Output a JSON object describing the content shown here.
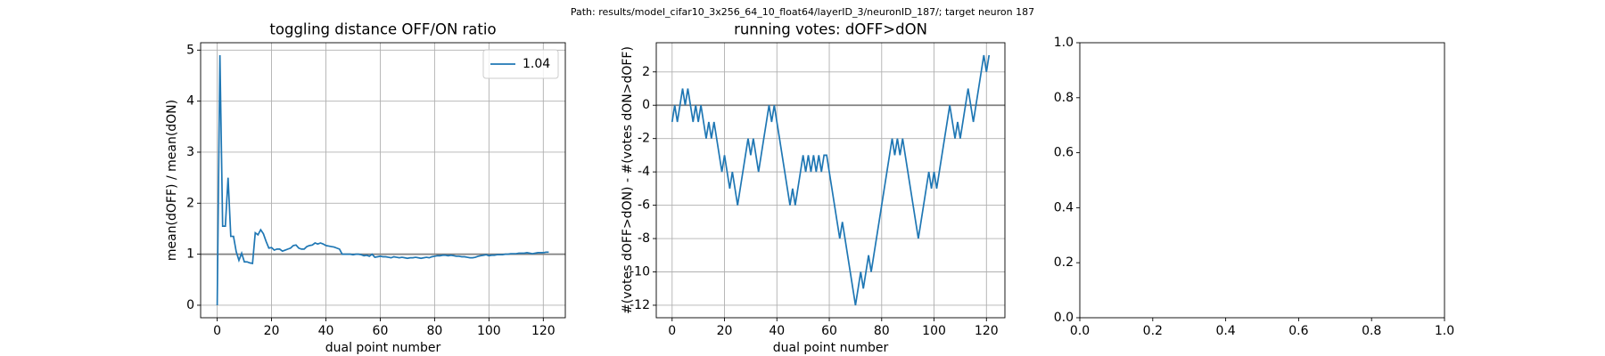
{
  "suptitle": "Path: results/model_cifar10_3x256_64_10_float64/layerID_3/neuronID_187/; target neuron 187",
  "chart_data": [
    {
      "type": "line",
      "title": "toggling distance OFF/ON ratio",
      "xlabel": "dual point number",
      "ylabel": "mean(dOFF) / mean(dON)",
      "x": [
        0,
        1,
        2,
        3,
        4,
        5,
        6,
        7,
        8,
        9,
        10,
        11,
        12,
        13,
        14,
        15,
        16,
        17,
        18,
        19,
        20,
        21,
        22,
        23,
        24,
        25,
        26,
        27,
        28,
        29,
        30,
        31,
        32,
        33,
        34,
        35,
        36,
        37,
        38,
        39,
        40,
        41,
        42,
        43,
        44,
        45,
        46,
        47,
        48,
        49,
        50,
        51,
        52,
        53,
        54,
        55,
        56,
        57,
        58,
        59,
        60,
        61,
        62,
        63,
        64,
        65,
        66,
        67,
        68,
        69,
        70,
        71,
        72,
        73,
        74,
        75,
        76,
        77,
        78,
        79,
        80,
        81,
        82,
        83,
        84,
        85,
        86,
        87,
        88,
        89,
        90,
        91,
        92,
        93,
        94,
        95,
        96,
        97,
        98,
        99,
        100,
        101,
        102,
        103,
        104,
        105,
        106,
        107,
        108,
        109,
        110,
        111,
        112,
        113,
        114,
        115,
        116,
        117,
        118,
        119,
        120,
        121,
        122
      ],
      "series": [
        {
          "name": "1.04",
          "color": "#1f77b4",
          "values": [
            0,
            4.9,
            1.55,
            1.55,
            2.5,
            1.35,
            1.35,
            1.05,
            0.88,
            1.02,
            0.85,
            0.85,
            0.83,
            0.82,
            1.42,
            1.38,
            1.48,
            1.4,
            1.25,
            1.12,
            1.13,
            1.08,
            1.1,
            1.1,
            1.06,
            1.08,
            1.1,
            1.12,
            1.17,
            1.18,
            1.12,
            1.1,
            1.1,
            1.15,
            1.17,
            1.18,
            1.22,
            1.2,
            1.22,
            1.2,
            1.17,
            1.16,
            1.15,
            1.14,
            1.12,
            1.1,
            1.0,
            1.0,
            1.0,
            1.0,
            0.99,
            1.0,
            1.0,
            0.99,
            0.97,
            0.98,
            0.96,
            1.0,
            0.94,
            0.95,
            0.96,
            0.95,
            0.95,
            0.94,
            0.93,
            0.95,
            0.94,
            0.93,
            0.94,
            0.93,
            0.92,
            0.93,
            0.93,
            0.94,
            0.93,
            0.92,
            0.93,
            0.94,
            0.93,
            0.95,
            0.96,
            0.97,
            0.97,
            0.98,
            0.98,
            0.97,
            0.98,
            0.97,
            0.96,
            0.96,
            0.95,
            0.95,
            0.94,
            0.93,
            0.93,
            0.94,
            0.96,
            0.97,
            0.98,
            0.99,
            0.97,
            0.98,
            0.98,
            0.99,
            0.99,
            0.99,
            1.0,
            1.0,
            1.01,
            1.01,
            1.01,
            1.02,
            1.02,
            1.02,
            1.03,
            1.02,
            1.01,
            1.02,
            1.03,
            1.03,
            1.03,
            1.04,
            1.04
          ]
        }
      ],
      "hline": 1,
      "hline_color": "#808080",
      "xlim": [
        -6.1,
        128.1
      ],
      "ylim": [
        -0.245,
        5.145
      ],
      "xticks": [
        0,
        20,
        40,
        60,
        80,
        100,
        120
      ],
      "yticks": [
        0,
        1,
        2,
        3,
        4,
        5
      ],
      "grid": true,
      "legend": "upper right"
    },
    {
      "type": "line",
      "title": "running votes: dOFF>dON",
      "xlabel": "dual point number",
      "ylabel": "#(votes dOFF>dON) - #(votes dON>dOFF)",
      "x": [
        0,
        1,
        2,
        3,
        4,
        5,
        6,
        7,
        8,
        9,
        10,
        11,
        12,
        13,
        14,
        15,
        16,
        17,
        18,
        19,
        20,
        21,
        22,
        23,
        24,
        25,
        26,
        27,
        28,
        29,
        30,
        31,
        32,
        33,
        34,
        35,
        36,
        37,
        38,
        39,
        40,
        41,
        42,
        43,
        44,
        45,
        46,
        47,
        48,
        49,
        50,
        51,
        52,
        53,
        54,
        55,
        56,
        57,
        58,
        59,
        60,
        61,
        62,
        63,
        64,
        65,
        66,
        67,
        68,
        69,
        70,
        71,
        72,
        73,
        74,
        75,
        76,
        77,
        78,
        79,
        80,
        81,
        82,
        83,
        84,
        85,
        86,
        87,
        88,
        89,
        90,
        91,
        92,
        93,
        94,
        95,
        96,
        97,
        98,
        99,
        100,
        101,
        102,
        103,
        104,
        105,
        106,
        107,
        108,
        109,
        110,
        111,
        112,
        113,
        114,
        115,
        116,
        117,
        118,
        119,
        120,
        121
      ],
      "series": [
        {
          "color": "#1f77b4",
          "values": [
            -1,
            0,
            -1,
            0,
            1,
            0,
            1,
            0,
            -1,
            0,
            -1,
            0,
            -1,
            -2,
            -1,
            -2,
            -1,
            -2,
            -3,
            -4,
            -3,
            -4,
            -5,
            -4,
            -5,
            -6,
            -5,
            -4,
            -3,
            -2,
            -3,
            -2,
            -3,
            -4,
            -3,
            -2,
            -1,
            0,
            -1,
            0,
            -1,
            -2,
            -3,
            -4,
            -5,
            -6,
            -5,
            -6,
            -5,
            -4,
            -3,
            -4,
            -3,
            -4,
            -3,
            -4,
            -3,
            -4,
            -3,
            -3,
            -4,
            -5,
            -6,
            -7,
            -8,
            -7,
            -8,
            -9,
            -10,
            -11,
            -12,
            -11,
            -10,
            -11,
            -10,
            -9,
            -10,
            -9,
            -8,
            -7,
            -6,
            -5,
            -4,
            -3,
            -2,
            -3,
            -2,
            -3,
            -2,
            -3,
            -4,
            -5,
            -6,
            -7,
            -8,
            -7,
            -6,
            -5,
            -4,
            -5,
            -4,
            -5,
            -4,
            -3,
            -2,
            -1,
            0,
            -1,
            -2,
            -1,
            -2,
            -1,
            0,
            1,
            0,
            -1,
            0,
            1,
            2,
            3,
            2,
            3
          ]
        }
      ],
      "hline": 0,
      "hline_color": "#808080",
      "xlim": [
        -6.05,
        127.05
      ],
      "ylim": [
        -12.75,
        3.75
      ],
      "xticks": [
        0,
        20,
        40,
        60,
        80,
        100,
        120
      ],
      "yticks": [
        -12,
        -10,
        -8,
        -6,
        -4,
        -2,
        0,
        2
      ],
      "grid": true
    },
    {
      "type": "line",
      "xlim": [
        0,
        1
      ],
      "ylim": [
        0,
        1
      ],
      "xticks": [
        {
          "value": 0,
          "label": "0.0"
        },
        {
          "value": 0.2,
          "label": "0.2"
        },
        {
          "value": 0.4,
          "label": "0.4"
        },
        {
          "value": 0.6,
          "label": "0.6"
        },
        {
          "value": 0.8,
          "label": "0.8"
        },
        {
          "value": 1,
          "label": "1.0"
        }
      ],
      "yticks": [
        {
          "value": 0,
          "label": "0.0"
        },
        {
          "value": 0.2,
          "label": "0.2"
        },
        {
          "value": 0.4,
          "label": "0.4"
        },
        {
          "value": 0.6,
          "label": "0.6"
        },
        {
          "value": 0.8,
          "label": "0.8"
        },
        {
          "value": 1,
          "label": "1.0"
        }
      ],
      "grid": false
    }
  ]
}
